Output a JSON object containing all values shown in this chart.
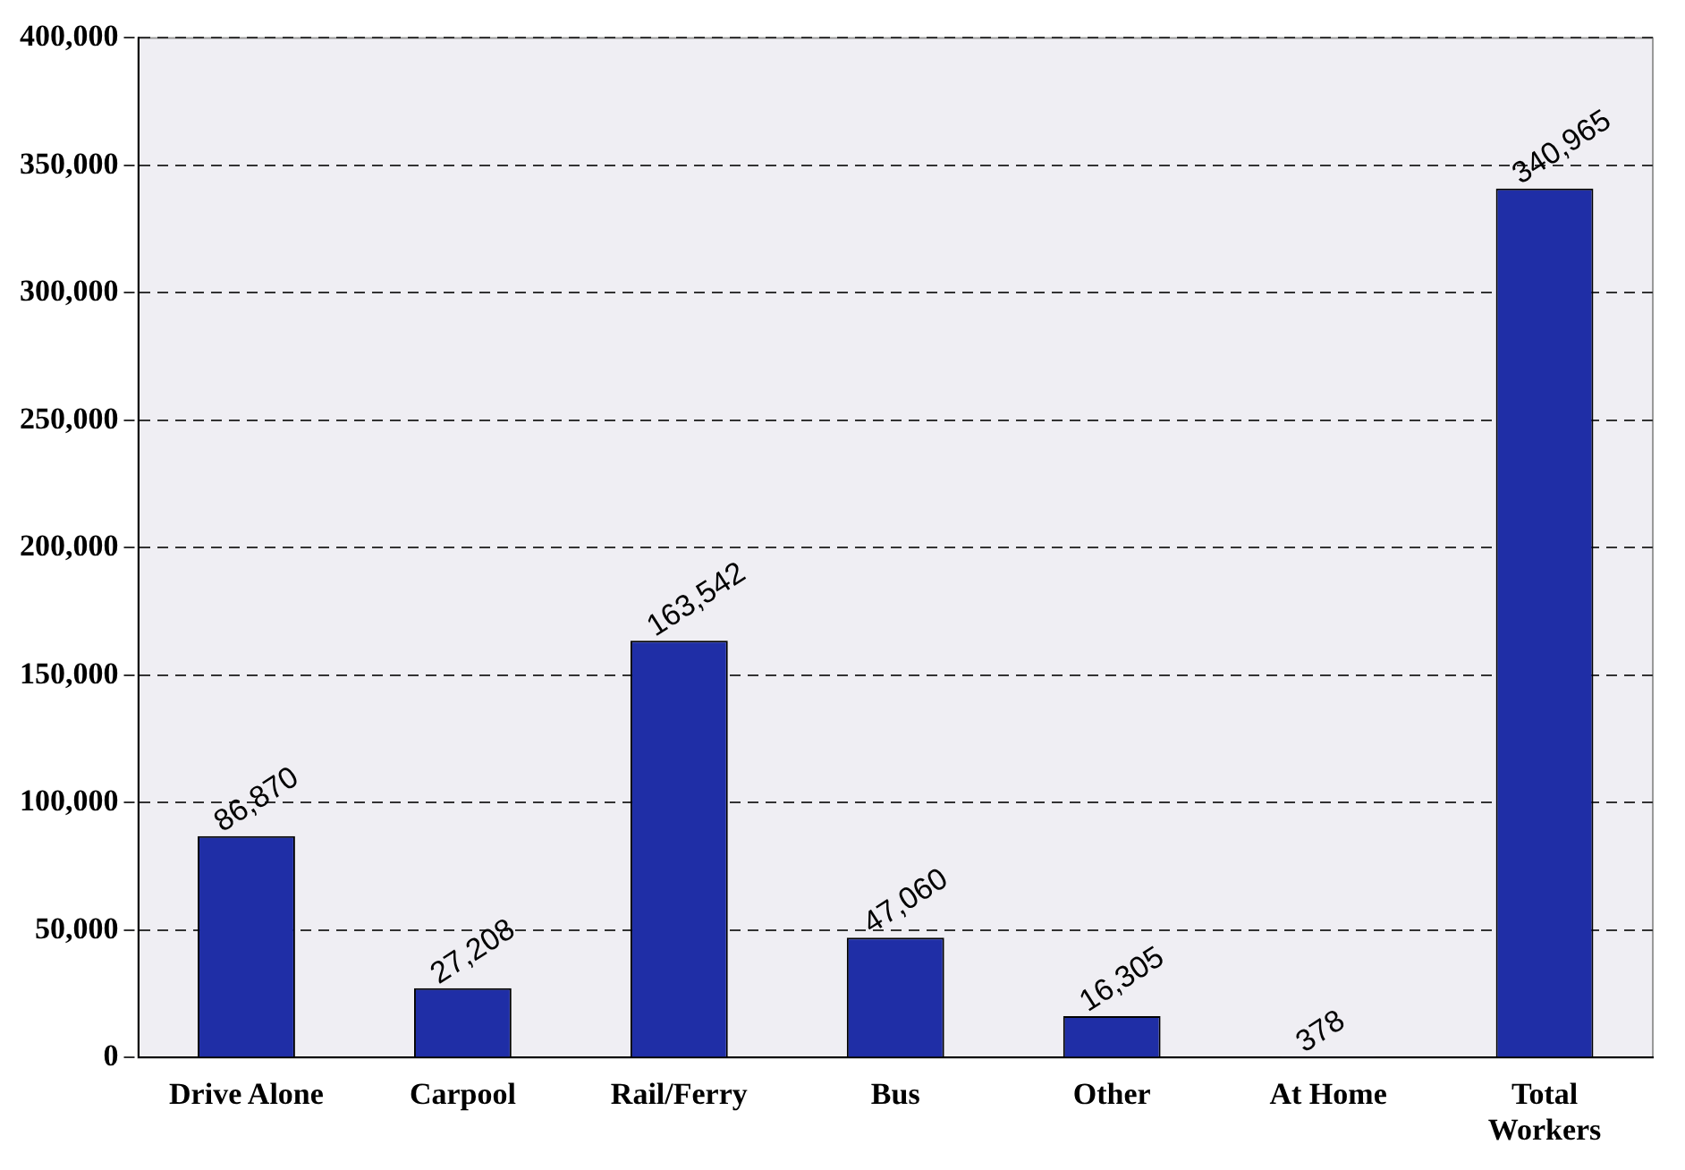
{
  "chart_data": {
    "type": "bar",
    "categories": [
      "Drive Alone",
      "Carpool",
      "Rail/Ferry",
      "Bus",
      "Other",
      "At Home",
      "Total Workers"
    ],
    "values": [
      86870,
      27208,
      163542,
      47060,
      16305,
      378,
      340965
    ],
    "color": "#1f2ea6",
    "value_labels": [
      "86,870",
      "27,208",
      "163,542",
      "47,060",
      "16,305",
      "378",
      "340,965"
    ],
    "grid": "y",
    "legend": false,
    "ylim": [
      0,
      400000
    ],
    "yticks": [
      {
        "value": 0,
        "label": "0"
      },
      {
        "value": 50000,
        "label": "50,000"
      },
      {
        "value": 100000,
        "label": "100,000"
      },
      {
        "value": 150000,
        "label": "150,000"
      },
      {
        "value": 200000,
        "label": "200,000"
      },
      {
        "value": 250000,
        "label": "250,000"
      },
      {
        "value": 300000,
        "label": "300,000"
      },
      {
        "value": 350000,
        "label": "350,000"
      },
      {
        "value": 400000,
        "label": "400,000"
      }
    ]
  }
}
